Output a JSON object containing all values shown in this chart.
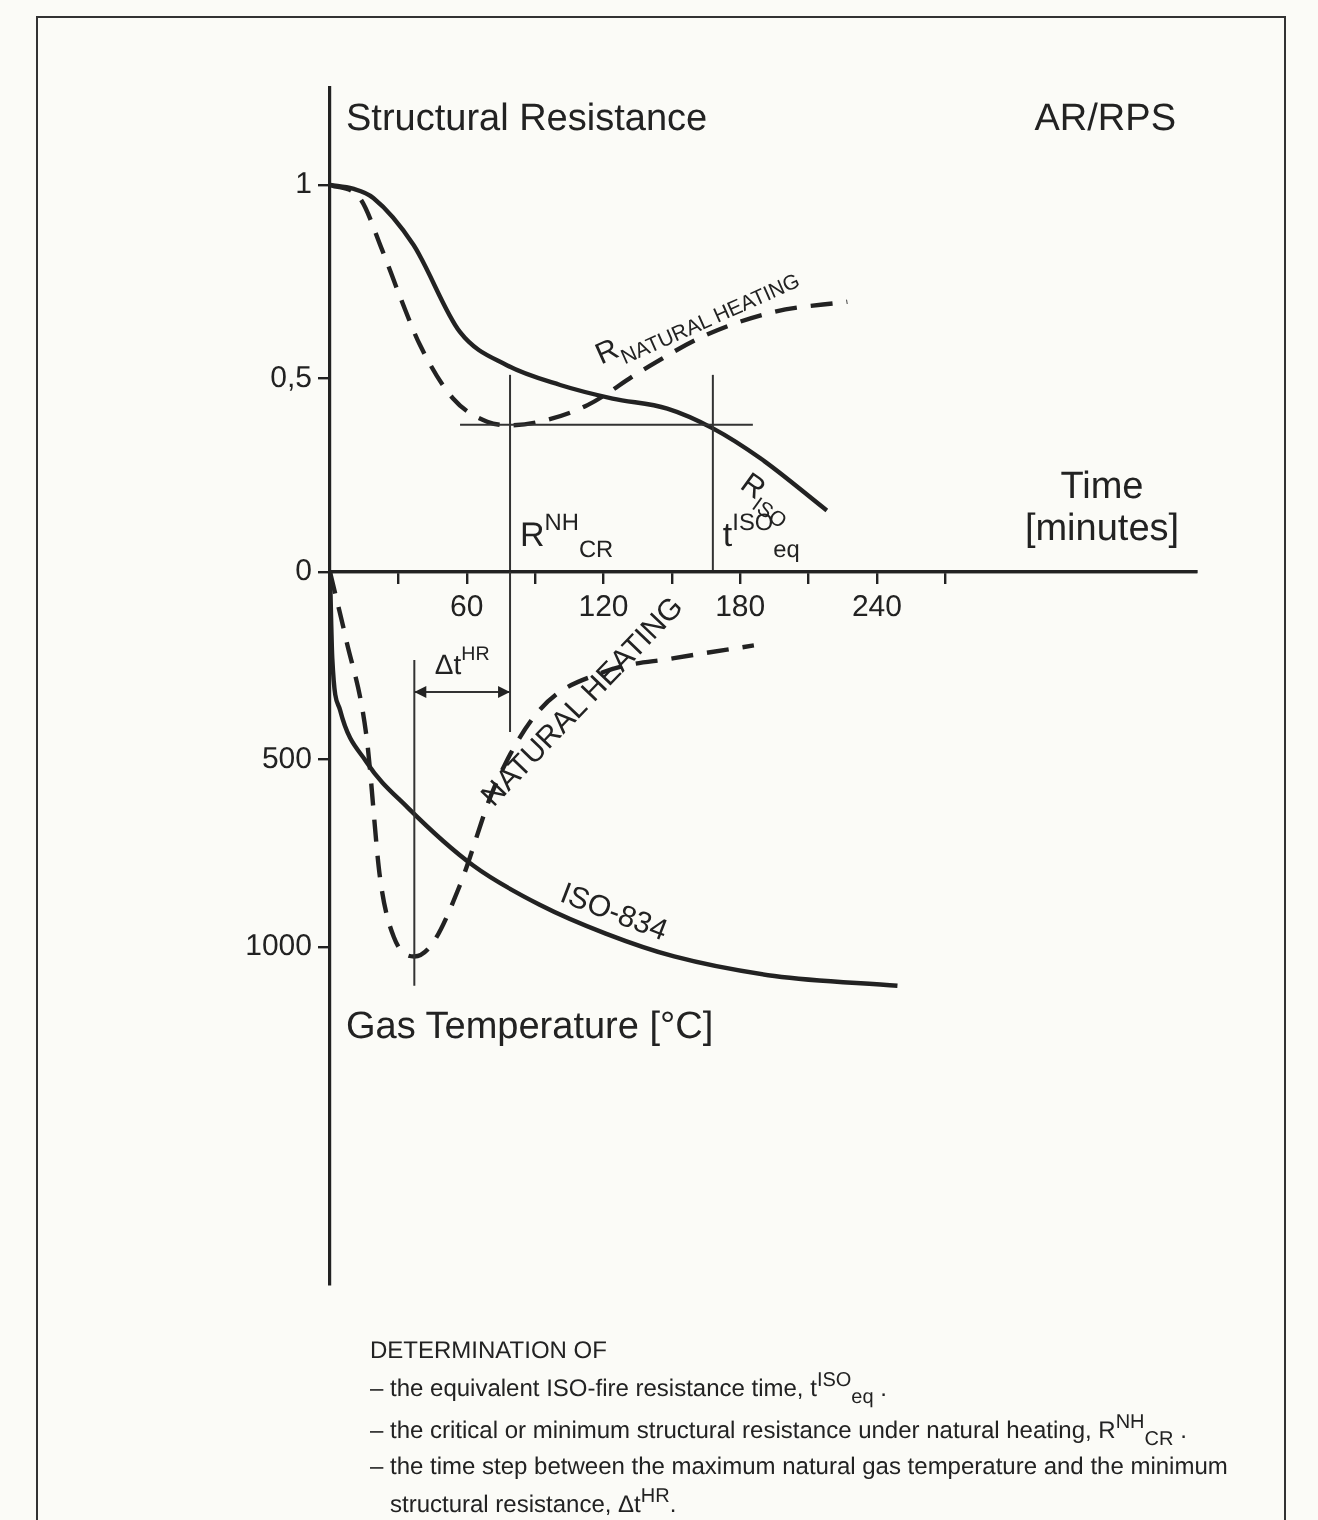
{
  "chart_data": [
    {
      "type": "line",
      "title": "AR/RPS",
      "ylabel": "Structural Resistance",
      "xlabel": "Time [minutes]",
      "marker": "none",
      "xlim": [
        0,
        380
      ],
      "xticks": [
        {
          "value": 30,
          "label": null
        },
        60,
        {
          "value": 90,
          "label": null
        },
        120,
        {
          "value": 150,
          "label": null
        },
        180,
        {
          "value": 210,
          "label": null
        },
        240,
        {
          "value": 270,
          "label": null
        }
      ],
      "ylim": [
        0,
        1.25
      ],
      "yticks": [
        0,
        {
          "value": 0.5,
          "label": "0,5"
        },
        1
      ],
      "series": [
        {
          "name": "R$_{ISO}$",
          "color": "#222222",
          "line_style": "solid",
          "x": [
            0,
            10,
            19,
            36.6,
            57,
            77.6,
            101,
            124,
            148,
            168,
            189,
            218
          ],
          "values": [
            1,
            0.99,
            0.966,
            0.845,
            0.62,
            0.534,
            0.483,
            0.448,
            0.422,
            0.371,
            0.293,
            0.159
          ]
        },
        {
          "name": "R$_{NATURAL HEATING}$",
          "color": "#222222",
          "line_style": "dashed",
          "x": [
            0,
            13,
            23,
            31,
            39.5,
            54,
            69,
            79,
            92,
            113,
            136,
            165,
            195,
            227
          ],
          "values": [
            1,
            0.966,
            0.83,
            0.707,
            0.586,
            0.448,
            0.388,
            0.379,
            0.388,
            0.431,
            0.517,
            0.612,
            0.672,
            0.698
          ]
        }
      ],
      "ref_lines": [
        {
          "axis": "x",
          "value": 79,
          "label": "R$^{NH}$$_{CR}$"
        },
        {
          "axis": "x",
          "value": 168,
          "label": "t$^{ISO}$$_{eq}$"
        },
        {
          "axis": "y",
          "value": 0.38
        }
      ]
    },
    {
      "type": "line",
      "ylabel": "Gas Temperature [°C]",
      "marker": "none",
      "tick_labels": "y",
      "xlim": [
        0,
        380
      ],
      "ylim": [
        1900,
        0
      ],
      "yticks": [
        500,
        1000
      ],
      "series": [
        {
          "name": "ISO-834",
          "color": "#222222",
          "line_style": "solid",
          "x": [
            0,
            1,
            4.4,
            16,
            34,
            63,
            92,
            121,
            151,
            195,
            249
          ],
          "values": [
            0,
            230,
            368,
            507,
            628,
            784,
            888,
            965,
            1026,
            1078,
            1104
          ]
        },
        {
          "name": "NATURAL HEATING",
          "color": "#222222",
          "line_style": "dashed",
          "x": [
            0,
            7,
            16,
            22,
            28,
            37,
            45,
            57,
            72,
            92,
            121,
            151,
            186
          ],
          "values": [
            0,
            178,
            438,
            818,
            974,
            1026,
            991,
            836,
            576,
            368,
            265,
            230,
            196
          ]
        }
      ],
      "ref_lines": [
        {
          "axis": "x",
          "value": 37,
          "label": "Δt$^{HR}$"
        },
        {
          "axis": "x",
          "value": 79
        }
      ],
      "annotations": [
        "DETERMINATION OF",
        "– the equivalent ISO-fire resistance time, t$^{ISO}$$_{eq}$ .",
        "– the critical or minimum structural resistance under natural heating, R$^{NH}$$_{CR}$ .",
        "– the time step between the maximum natural gas temperature and the minimum structural resistance, Δt$^{HR}$."
      ]
    }
  ]
}
